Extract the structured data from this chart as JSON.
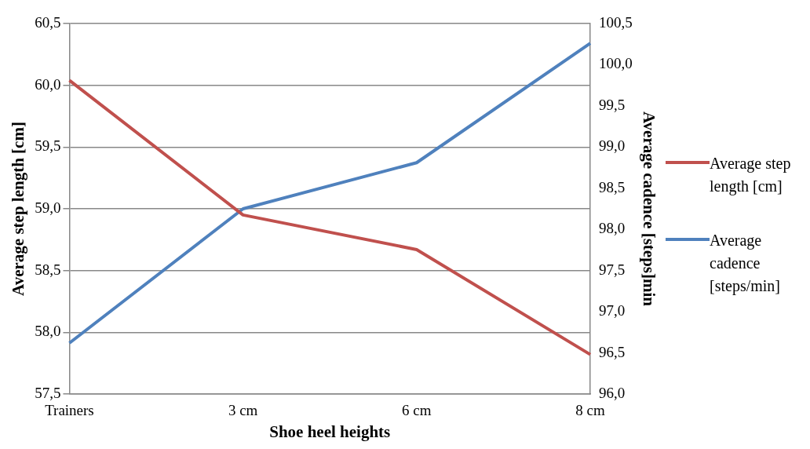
{
  "chart_data": {
    "type": "line",
    "categories": [
      "Trainers",
      "3 cm",
      "6 cm",
      "8 cm"
    ],
    "xlabel": "Shoe heel heights",
    "ylabel": "Average step length [cm]",
    "y2label": "Average cadence [steps]min",
    "series": [
      {
        "name": "Average step length [cm]",
        "color": "#c0504d",
        "values": [
          60.04,
          58.95,
          58.67,
          57.82
        ]
      },
      {
        "name": "Average cadence [steps/min]",
        "color": "#4f81bd",
        "values": [
          96.62,
          98.25,
          98.81,
          100.26
        ],
        "axis": "y2"
      }
    ],
    "ylim": [
      57.5,
      60.5
    ],
    "yticks": [
      {
        "value": 57.5,
        "label": "57,5"
      },
      {
        "value": 58,
        "label": "58,0"
      },
      {
        "value": 58.5,
        "label": "58,5"
      },
      {
        "value": 59,
        "label": "59,0"
      },
      {
        "value": 59.5,
        "label": "59,5"
      },
      {
        "value": 60,
        "label": "60,0"
      },
      {
        "value": 60.5,
        "label": "60,5"
      }
    ],
    "y2lim": [
      96,
      100.5
    ],
    "y2ticks": [
      {
        "value": 96,
        "label": "96,0"
      },
      {
        "value": 96.5,
        "label": "96,5"
      },
      {
        "value": 97,
        "label": "97,0"
      },
      {
        "value": 97.5,
        "label": "97,5"
      },
      {
        "value": 98,
        "label": "98,0"
      },
      {
        "value": 98.5,
        "label": "98,5"
      },
      {
        "value": 99,
        "label": "99,0"
      },
      {
        "value": 99.5,
        "label": "99,5"
      },
      {
        "value": 100,
        "label": "100,0"
      },
      {
        "value": 100.5,
        "label": "100,5"
      }
    ],
    "grid": "y",
    "legend": "right",
    "marker": "none",
    "line_style": "solid"
  }
}
